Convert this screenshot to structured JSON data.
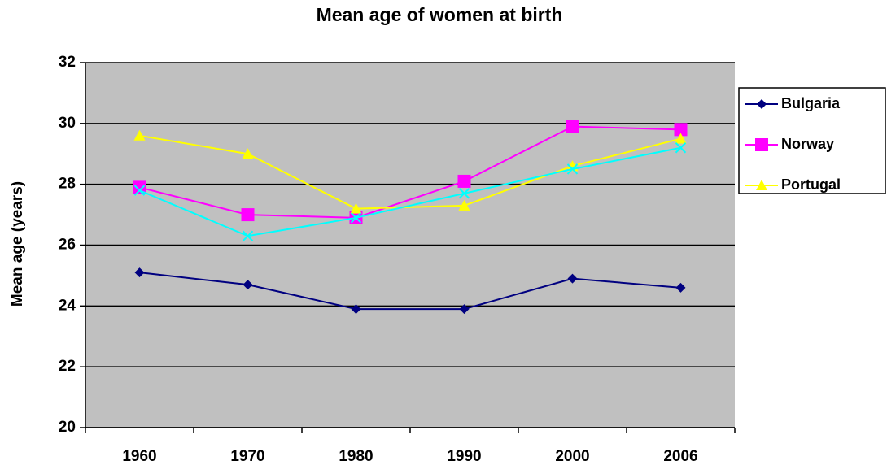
{
  "chart_data": {
    "type": "line",
    "title": "Mean age of women at birth",
    "y_label": "Mean age (years)",
    "categories": [
      "1960",
      "1970",
      "1980",
      "1990",
      "2000",
      "2006"
    ],
    "series": [
      {
        "name": "Bulgaria",
        "color": "#000080",
        "marker": "diamond",
        "values": [
          25.1,
          24.7,
          23.9,
          23.9,
          24.9,
          24.6
        ]
      },
      {
        "name": "Norway",
        "color": "#ff00ff",
        "marker": "square",
        "values": [
          27.9,
          27.0,
          26.9,
          28.1,
          29.9,
          29.8
        ]
      },
      {
        "name": "Portugal",
        "color": "#ffff00",
        "marker": "triangle",
        "values": [
          29.6,
          29.0,
          27.2,
          27.3,
          28.6,
          29.5
        ]
      },
      {
        "color": "#00ffff",
        "marker": "x",
        "values": [
          27.8,
          26.3,
          26.9,
          27.7,
          28.5,
          29.2
        ]
      }
    ],
    "ylim": [
      20,
      32
    ],
    "yticks": [
      20,
      22,
      24,
      26,
      28,
      30,
      32
    ],
    "grid": true,
    "legend": "right",
    "plot_background": "#c0c0c0"
  }
}
